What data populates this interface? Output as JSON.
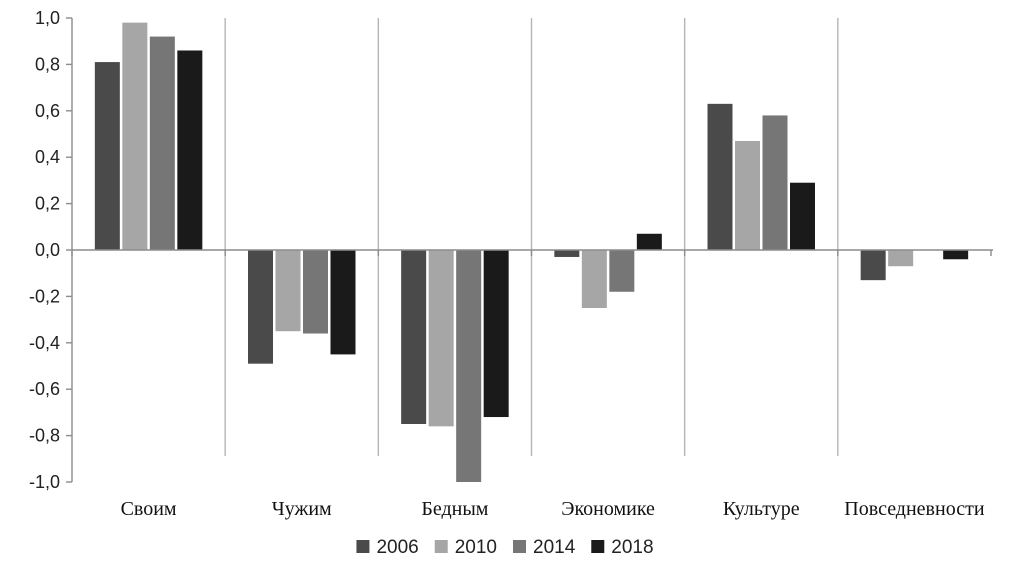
{
  "chart_data": {
    "type": "bar",
    "title": "",
    "xlabel": "",
    "ylabel": "",
    "ylim": [
      -1.0,
      1.0
    ],
    "yticks": [
      "-1,0",
      "-0,8",
      "-0,6",
      "-0,4",
      "-0,2",
      "0,0",
      "0,2",
      "0,4",
      "0,6",
      "0,8",
      "1,0"
    ],
    "categories": [
      "Своим",
      "Чужим",
      "Бедным",
      "Экономике",
      "Культуре",
      "Повседневности"
    ],
    "series": [
      {
        "name": "2006",
        "color": "#4a4a4a",
        "values": [
          0.81,
          -0.49,
          -0.75,
          -0.03,
          0.63,
          -0.13
        ]
      },
      {
        "name": "2010",
        "color": "#a6a6a6",
        "values": [
          0.98,
          -0.35,
          -0.76,
          -0.25,
          0.47,
          -0.07
        ]
      },
      {
        "name": "2014",
        "color": "#767676",
        "values": [
          0.92,
          -0.36,
          -1.0,
          -0.18,
          0.58,
          0.0
        ]
      },
      {
        "name": "2018",
        "color": "#1a1a1a",
        "values": [
          0.86,
          -0.45,
          -0.72,
          0.07,
          0.29,
          -0.04
        ]
      }
    ],
    "grid": false,
    "separators": true,
    "legend_position": "bottom"
  }
}
